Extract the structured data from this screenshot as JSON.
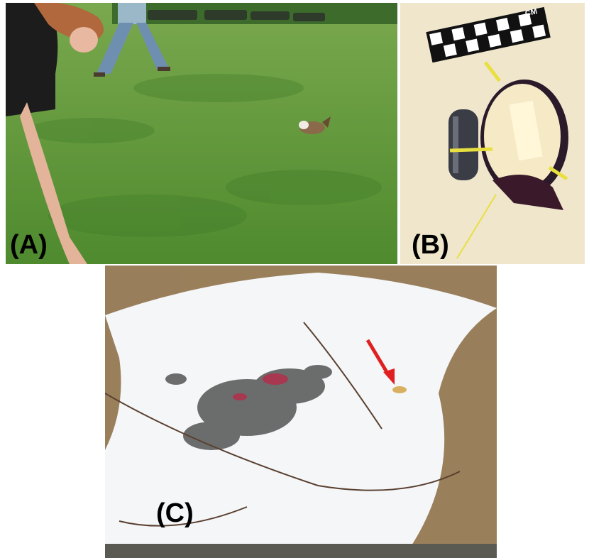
{
  "figure": {
    "panels": [
      {
        "id": "A",
        "label": "(A)"
      },
      {
        "id": "B",
        "label": "(B)",
        "scale_unit": "CM"
      },
      {
        "id": "C",
        "label": "(C)"
      }
    ]
  },
  "colors": {
    "grass": "#5f9a3a",
    "grass_dark": "#3f7a2a",
    "foam_background": "#efe6cc",
    "snow": "#f4f6f8",
    "arrow": "#e02020"
  }
}
